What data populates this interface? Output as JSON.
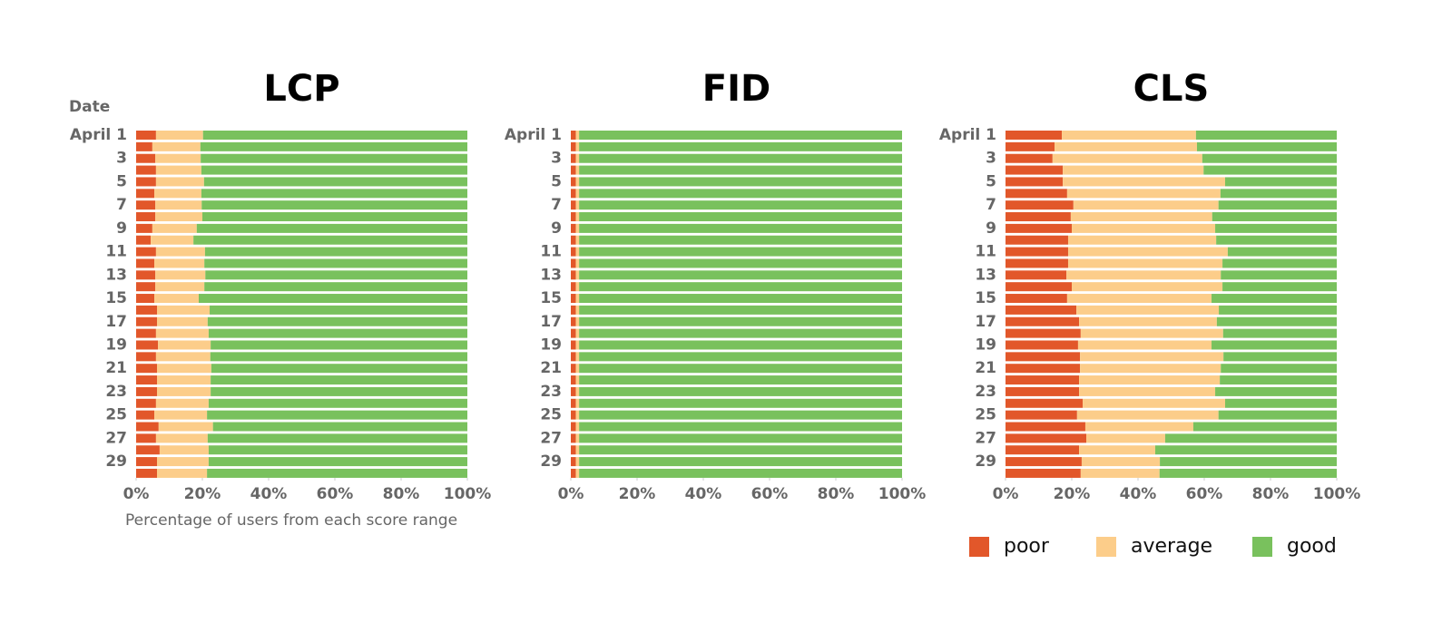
{
  "chart_data": [
    {
      "type": "bar",
      "orientation": "horizontal",
      "stacked": true,
      "title": "LCP",
      "y_label": "Date",
      "x_label": "Percentage of users from each score range",
      "categories": [
        "April 1",
        null,
        "3",
        null,
        "5",
        null,
        "7",
        null,
        "9",
        null,
        "11",
        null,
        "13",
        null,
        "15",
        null,
        "17",
        null,
        "19",
        null,
        "21",
        null,
        "23",
        null,
        "25",
        null,
        "27",
        null,
        "29",
        null
      ],
      "series": [
        {
          "name": "poor",
          "color": "#e2572a",
          "values": [
            6.0,
            4.9,
            5.8,
            6.0,
            6.0,
            5.5,
            5.8,
            5.8,
            4.9,
            4.4,
            6.0,
            5.5,
            5.8,
            5.8,
            5.5,
            6.3,
            6.3,
            6.0,
            6.6,
            6.0,
            6.3,
            6.3,
            6.3,
            6.0,
            5.5,
            6.8,
            6.0,
            7.1,
            6.3,
            6.3
          ]
        },
        {
          "name": "average",
          "color": "#fccd8a",
          "values": [
            14.2,
            14.5,
            13.7,
            13.7,
            14.5,
            14.2,
            14.0,
            14.2,
            13.4,
            12.9,
            14.8,
            15.1,
            15.1,
            14.8,
            13.4,
            15.9,
            15.3,
            15.9,
            15.9,
            16.4,
            16.4,
            16.2,
            16.2,
            15.9,
            15.9,
            16.4,
            15.6,
            14.8,
            15.6,
            15.1
          ]
        },
        {
          "name": "good",
          "color": "#79c15d",
          "values": [
            79.8,
            80.6,
            80.5,
            80.3,
            79.5,
            80.3,
            80.2,
            80.0,
            81.7,
            82.7,
            79.2,
            79.4,
            79.1,
            79.4,
            81.1,
            77.8,
            78.4,
            78.1,
            77.5,
            77.6,
            77.3,
            77.5,
            77.5,
            78.1,
            78.6,
            76.8,
            78.4,
            78.1,
            78.1,
            78.6
          ]
        }
      ],
      "xlim": [
        0,
        100
      ],
      "xticks": [
        {
          "value": 0,
          "label": "0%"
        },
        {
          "value": 20,
          "label": "20%"
        },
        {
          "value": 40,
          "label": "40%"
        },
        {
          "value": 60,
          "label": "60%"
        },
        {
          "value": 80,
          "label": "80%"
        },
        {
          "value": 100,
          "label": "100%"
        }
      ]
    },
    {
      "type": "bar",
      "orientation": "horizontal",
      "stacked": true,
      "title": "FID",
      "categories": [
        "April 1",
        null,
        "3",
        null,
        "5",
        null,
        "7",
        null,
        "9",
        null,
        "11",
        null,
        "13",
        null,
        "15",
        null,
        "17",
        null,
        "19",
        null,
        "21",
        null,
        "23",
        null,
        "25",
        null,
        "27",
        null,
        "29",
        null
      ],
      "series": [
        {
          "name": "poor",
          "color": "#e2572a",
          "values": [
            1.5,
            1.5,
            1.5,
            1.5,
            1.5,
            1.5,
            1.5,
            1.5,
            1.5,
            1.5,
            1.5,
            1.5,
            1.5,
            1.5,
            1.5,
            1.5,
            1.5,
            1.5,
            1.5,
            1.5,
            1.5,
            1.5,
            1.5,
            1.5,
            1.5,
            1.5,
            1.5,
            1.5,
            1.5,
            1.5
          ]
        },
        {
          "name": "average",
          "color": "#fccd8a",
          "values": [
            1.0,
            1.0,
            1.0,
            1.0,
            1.0,
            1.0,
            1.0,
            1.0,
            1.0,
            1.0,
            1.0,
            1.0,
            1.0,
            1.0,
            1.0,
            1.0,
            1.0,
            1.0,
            1.0,
            1.0,
            1.0,
            1.0,
            1.0,
            1.0,
            1.0,
            1.0,
            1.0,
            1.0,
            1.0,
            1.0
          ]
        },
        {
          "name": "good",
          "color": "#79c15d",
          "values": [
            97.5,
            97.5,
            97.5,
            97.5,
            97.5,
            97.5,
            97.5,
            97.5,
            97.5,
            97.5,
            97.5,
            97.5,
            97.5,
            97.5,
            97.5,
            97.5,
            97.5,
            97.5,
            97.5,
            97.5,
            97.5,
            97.5,
            97.5,
            97.5,
            97.5,
            97.5,
            97.5,
            97.5,
            97.5,
            97.5
          ]
        }
      ],
      "xlim": [
        0,
        100
      ],
      "xticks": [
        {
          "value": 0,
          "label": "0%"
        },
        {
          "value": 20,
          "label": "20%"
        },
        {
          "value": 40,
          "label": "40%"
        },
        {
          "value": 60,
          "label": "60%"
        },
        {
          "value": 80,
          "label": "80%"
        },
        {
          "value": 100,
          "label": "100%"
        }
      ]
    },
    {
      "type": "bar",
      "orientation": "horizontal",
      "stacked": true,
      "title": "CLS",
      "legend": "bottom",
      "categories": [
        "April 1",
        null,
        "3",
        null,
        "5",
        null,
        "7",
        null,
        "9",
        null,
        "11",
        null,
        "13",
        null,
        "15",
        null,
        "17",
        null,
        "19",
        null,
        "21",
        null,
        "23",
        null,
        "25",
        null,
        "27",
        null,
        "29",
        null
      ],
      "series": [
        {
          "name": "poor",
          "color": "#e2572a",
          "values": [
            17.0,
            14.8,
            14.2,
            17.3,
            17.3,
            18.6,
            20.5,
            19.7,
            20.0,
            18.9,
            18.9,
            18.9,
            18.4,
            20.0,
            18.6,
            21.4,
            22.2,
            22.7,
            21.9,
            22.5,
            22.5,
            22.2,
            22.2,
            23.3,
            21.6,
            24.1,
            24.4,
            22.2,
            23.0,
            22.7
          ]
        },
        {
          "name": "average",
          "color": "#fccd8a",
          "values": [
            40.5,
            43.0,
            45.2,
            42.5,
            49.0,
            46.3,
            43.8,
            42.7,
            43.3,
            44.7,
            48.2,
            46.6,
            46.6,
            45.5,
            43.6,
            43.0,
            41.6,
            43.0,
            40.3,
            43.3,
            42.5,
            42.5,
            41.1,
            43.0,
            42.7,
            32.6,
            23.8,
            23.0,
            23.6,
            23.8
          ]
        },
        {
          "name": "good",
          "color": "#79c15d",
          "values": [
            42.5,
            42.2,
            40.6,
            40.2,
            33.7,
            35.1,
            35.7,
            37.6,
            36.7,
            36.4,
            32.9,
            34.5,
            35.0,
            34.5,
            37.8,
            35.6,
            36.2,
            34.3,
            37.8,
            34.2,
            35.0,
            35.3,
            36.7,
            33.7,
            35.7,
            43.3,
            51.8,
            54.8,
            53.4,
            53.5
          ]
        }
      ],
      "xlim": [
        0,
        100
      ],
      "xticks": [
        {
          "value": 0,
          "label": "0%"
        },
        {
          "value": 20,
          "label": "20%"
        },
        {
          "value": 40,
          "label": "40%"
        },
        {
          "value": 60,
          "label": "60%"
        },
        {
          "value": 80,
          "label": "80%"
        },
        {
          "value": 100,
          "label": "100%"
        }
      ]
    }
  ]
}
